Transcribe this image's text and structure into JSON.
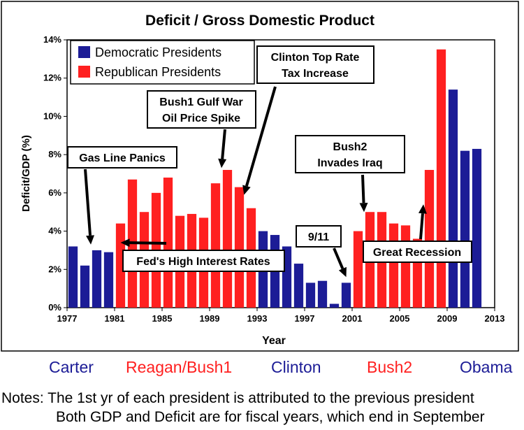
{
  "colors": {
    "democratic": "#1c1c96",
    "republican": "#ff2020",
    "blue_text": "#1c1c96",
    "red_text": "#ff2020"
  },
  "chart_data": {
    "type": "bar",
    "title": "Deficit / Gross Domestic Product",
    "xlabel": "Year",
    "ylabel": "Deficit/GDP (%)",
    "ylim": [
      0,
      14
    ],
    "yticks": [
      "0%",
      "2%",
      "4%",
      "6%",
      "8%",
      "10%",
      "12%",
      "14%"
    ],
    "xticks": [
      "1977",
      "1981",
      "1985",
      "1989",
      "1993",
      "1997",
      "2001",
      "2005",
      "2009",
      "2013"
    ],
    "xlim": [
      1977,
      2013
    ],
    "legend": {
      "position": "top-left",
      "entries": [
        {
          "label": "Democratic Presidents",
          "party": "D"
        },
        {
          "label": "Republican Presidents",
          "party": "R"
        }
      ]
    },
    "series": [
      {
        "name": "Democratic Presidents",
        "party": "D",
        "x": [
          1978,
          1979,
          1980,
          1981,
          1994,
          1995,
          1996,
          1997,
          1998,
          1999,
          2000,
          2001,
          2010,
          2011,
          2012
        ],
        "values": [
          3.2,
          2.2,
          3.0,
          2.9,
          4.0,
          3.8,
          3.2,
          2.3,
          1.3,
          1.4,
          0.2,
          1.3,
          11.4,
          8.2,
          8.3
        ]
      },
      {
        "name": "Republican Presidents",
        "party": "R",
        "x": [
          1982,
          1983,
          1984,
          1985,
          1986,
          1987,
          1988,
          1989,
          1990,
          1991,
          1992,
          1993,
          2002,
          2003,
          2004,
          2005,
          2006,
          2007,
          2008,
          2009
        ],
        "values": [
          4.4,
          6.7,
          5.0,
          6.0,
          6.8,
          4.8,
          4.9,
          4.7,
          6.5,
          7.2,
          6.3,
          5.2,
          4.0,
          5.0,
          5.0,
          4.4,
          4.3,
          3.6,
          7.2,
          13.5
        ]
      }
    ],
    "annotations": [
      {
        "text": [
          "Gas Line Panics"
        ],
        "arrow_to": [
          1979.5,
          3.3
        ]
      },
      {
        "text": [
          "Fed's High Interest Rates"
        ],
        "arrow_to": [
          1982,
          3.4
        ]
      },
      {
        "text": [
          "Bush1 Gulf War",
          "Oil Price Spike"
        ],
        "arrow_to": [
          1990.5,
          7.3
        ]
      },
      {
        "text": [
          "Clinton Top Rate",
          "Tax Increase"
        ],
        "arrow_to": [
          1992.4,
          5.9
        ]
      },
      {
        "text": [
          "Bush2",
          "Invades Iraq"
        ],
        "arrow_to": [
          2002.5,
          5.0
        ]
      },
      {
        "text": [
          "9/11"
        ],
        "arrow_to": [
          2001,
          1.6
        ]
      },
      {
        "text": [
          "Great Recession"
        ],
        "arrow_to": [
          2007.5,
          5.4
        ]
      }
    ]
  },
  "presidents": [
    {
      "label": "Carter",
      "party": "D"
    },
    {
      "label": "Reagan/Bush1",
      "party": "R"
    },
    {
      "label": "Clinton",
      "party": "D"
    },
    {
      "label": "Bush2",
      "party": "R"
    },
    {
      "label": "Obama",
      "party": "D"
    }
  ],
  "notes": {
    "line1": "Notes: The 1st yr of each president is attributed to the previous president",
    "line2": "Both GDP and Deficit are for fiscal years, which end in September"
  }
}
